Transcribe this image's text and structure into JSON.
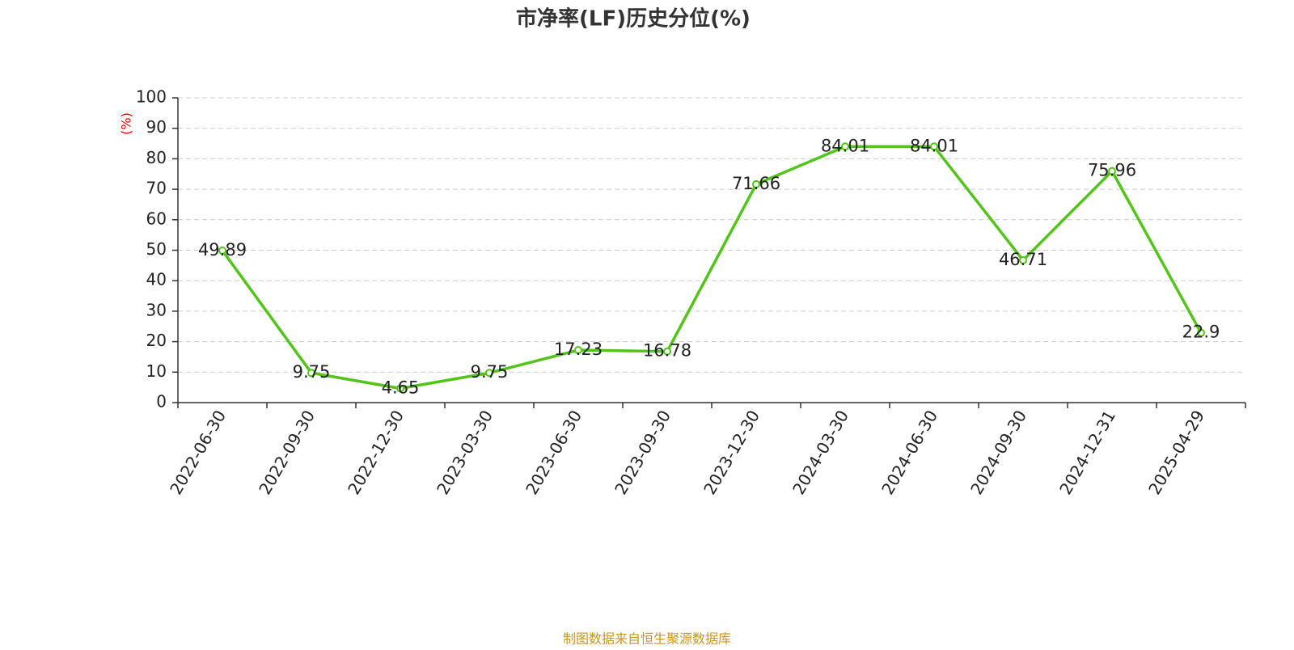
{
  "chart_data": {
    "type": "line",
    "title": "市净率(LF)历史分位(%)",
    "y_label": "(%)",
    "footer": "制图数据来自恒生聚源数据库",
    "categories": [
      "2022-06-30",
      "2022-09-30",
      "2022-12-30",
      "2023-03-30",
      "2023-06-30",
      "2023-09-30",
      "2023-12-30",
      "2024-03-30",
      "2024-06-30",
      "2024-09-30",
      "2024-12-31",
      "2025-04-29"
    ],
    "series": [
      {
        "color": "#52c41a",
        "values": [
          49.89,
          9.75,
          4.65,
          9.75,
          17.23,
          16.78,
          71.66,
          84.01,
          84.01,
          46.71,
          75.96,
          22.9
        ]
      }
    ],
    "ylim": [
      0,
      100
    ],
    "yticks": [
      0,
      10,
      20,
      30,
      40,
      50,
      60,
      70,
      80,
      90,
      100
    ],
    "grid": true
  }
}
